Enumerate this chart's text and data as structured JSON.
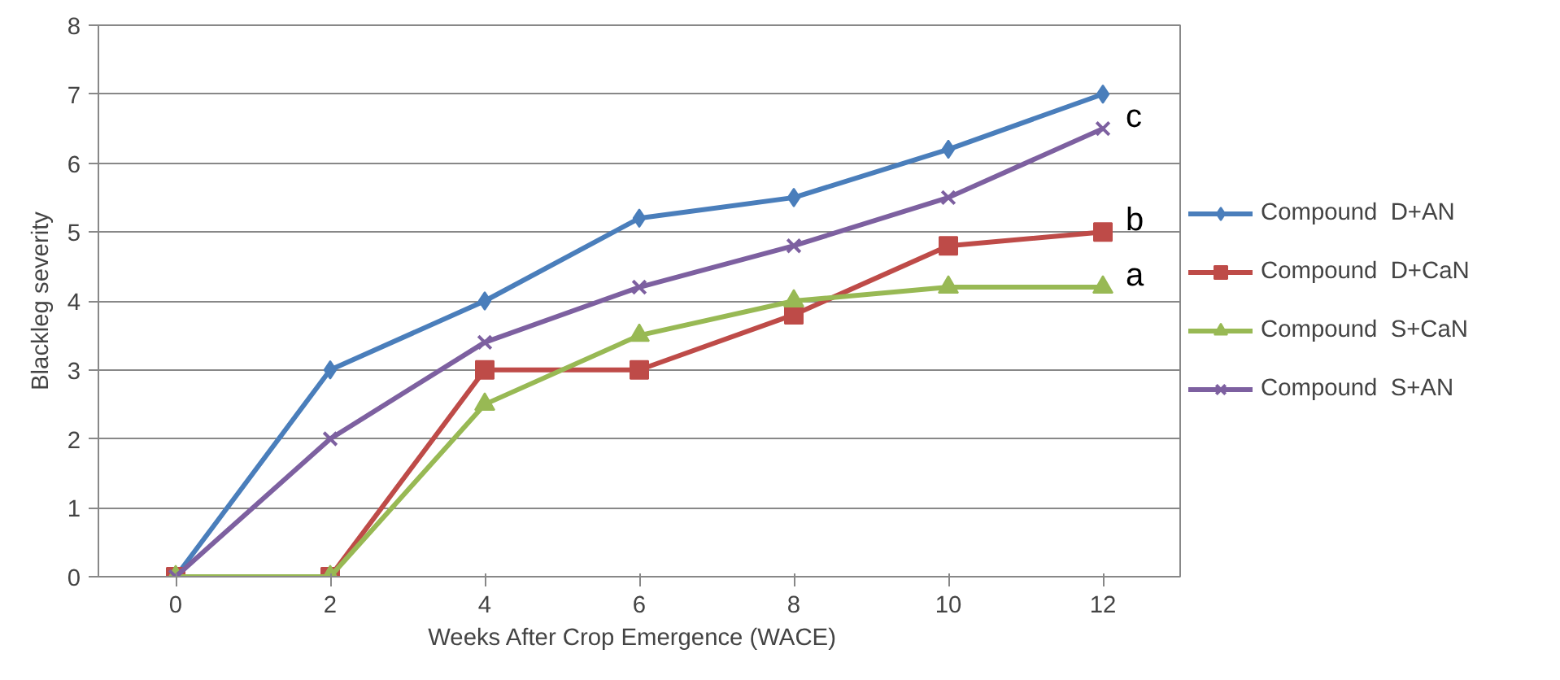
{
  "chart_data": {
    "type": "line",
    "xlabel": "Weeks After Crop  Emergence  (WACE)",
    "ylabel": "Blackleg severity",
    "categories": [
      "0",
      "2",
      "4",
      "6",
      "8",
      "10",
      "12"
    ],
    "ylim": [
      0,
      8
    ],
    "yticks": [
      0,
      1,
      2,
      3,
      4,
      5,
      6,
      7,
      8
    ],
    "grid": "y",
    "legend": "right",
    "series": [
      {
        "name": "Compound  D+AN",
        "color": "#4a7ebb",
        "marker": "diamond",
        "values": [
          0,
          3,
          4,
          5.2,
          5.5,
          6.2,
          7
        ]
      },
      {
        "name": "Compound  D+CaN",
        "color": "#be4b48",
        "marker": "square",
        "values": [
          0,
          0,
          3,
          3,
          3.8,
          4.8,
          5
        ]
      },
      {
        "name": "Compound  S+CaN",
        "color": "#98b954",
        "marker": "triangle",
        "values": [
          0,
          0,
          2.5,
          3.5,
          4,
          4.2,
          4.2
        ]
      },
      {
        "name": "Compound  S+AN",
        "color": "#7d60a0",
        "marker": "cross",
        "values": [
          0,
          2,
          3.4,
          4.2,
          4.8,
          5.5,
          6.5
        ]
      }
    ],
    "annotations": [
      {
        "text": "c",
        "x": "12",
        "y": 6.5
      },
      {
        "text": "b",
        "x": "12",
        "y": 5
      },
      {
        "text": "a",
        "x": "12",
        "y": 4.2
      }
    ]
  }
}
